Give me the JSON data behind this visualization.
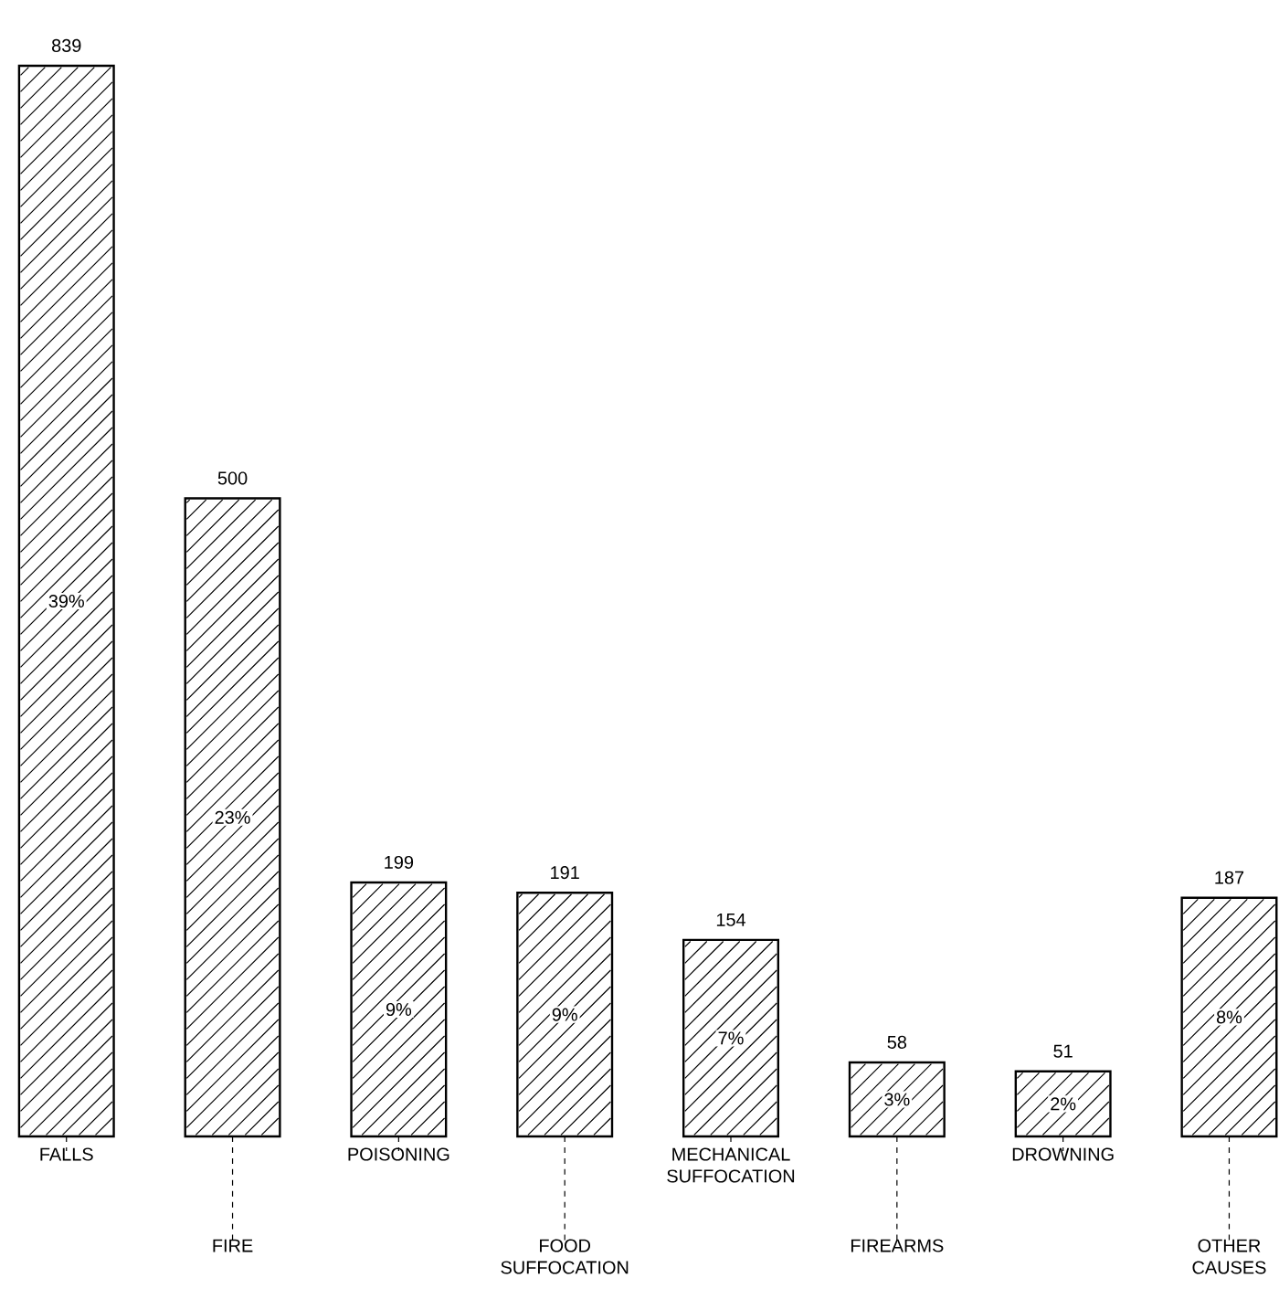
{
  "chart_data": {
    "type": "bar",
    "categories": [
      "FALLS",
      "FIRE",
      "POISONING",
      "FOOD SUFFOCATION",
      "MECHANICAL SUFFOCATION",
      "FIREARMS",
      "DROWNING",
      "OTHER CAUSES"
    ],
    "values": [
      839,
      500,
      199,
      191,
      154,
      58,
      51,
      187
    ],
    "color": "#ffffff",
    "data_labels": true,
    "annotations": [
      "39%",
      "23%",
      "9%",
      "9%",
      "7%",
      "3%",
      "2%",
      "8%"
    ]
  }
}
